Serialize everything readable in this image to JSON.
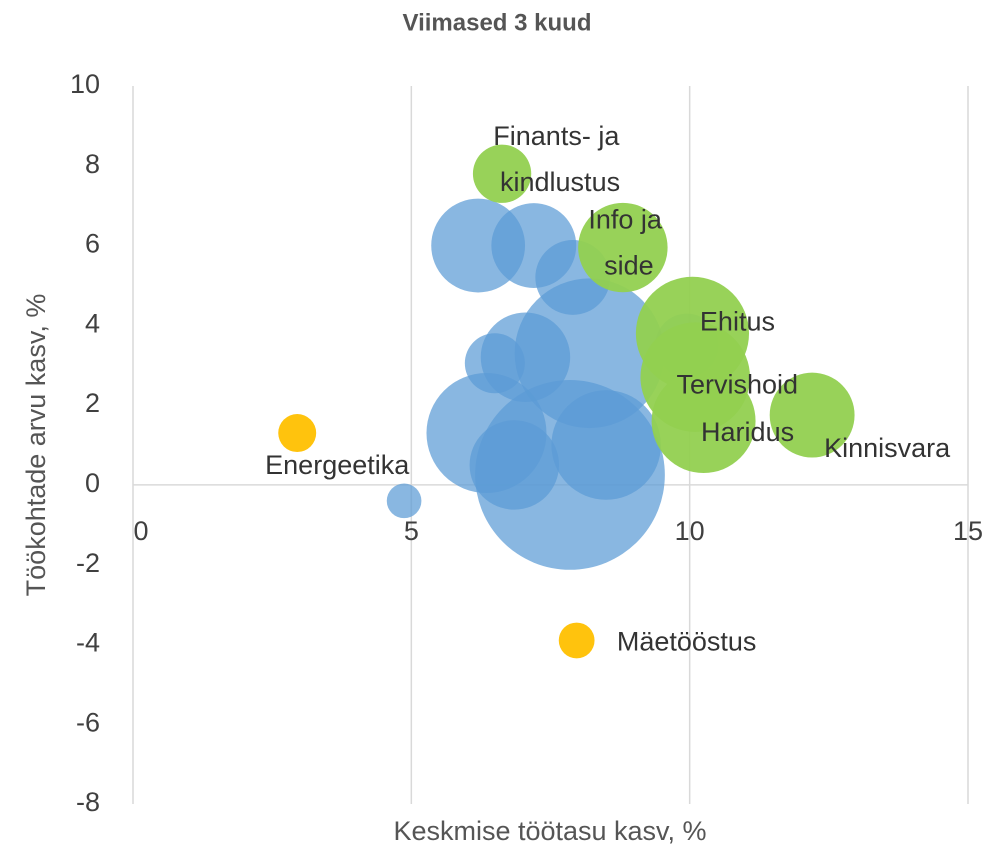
{
  "chart_data": {
    "type": "bubble",
    "title": "Viimased 3 kuud",
    "x_label": "Keskmise töötasu kasv, %",
    "y_label": "Töökohtade arvu kasv, %",
    "xlim": [
      0,
      15
    ],
    "xticks": [
      0,
      5,
      10,
      15
    ],
    "ylim": [
      -8,
      10
    ],
    "yticks": [
      -8,
      -6,
      -4,
      -2,
      0,
      2,
      4,
      6,
      8,
      10
    ],
    "grid": true,
    "series": [
      {
        "color": "#5b9bd5",
        "x": [
          7.85,
          8.2,
          6.35,
          6.2,
          7.2,
          8.5,
          7.05,
          6.85,
          7.9,
          6.5,
          4.87,
          9.95
        ],
        "y": [
          0.25,
          3.3,
          1.3,
          6.0,
          6.0,
          1.0,
          3.2,
          0.5,
          5.2,
          3.05,
          -0.4,
          3.5
        ],
        "size": [
          90,
          56,
          36,
          22,
          18,
          30,
          20,
          20,
          14,
          9,
          3,
          10
        ]
      },
      {
        "color": "#92d050",
        "x": [
          6.63,
          8.8,
          10.05,
          10.1,
          10.25,
          12.2
        ],
        "y": [
          7.8,
          5.95,
          3.8,
          2.7,
          1.6,
          1.75
        ],
        "size": [
          8.5,
          20,
          32,
          30,
          27,
          18
        ],
        "labels": [
          "Finants- ja kindlustus",
          "Info ja side",
          "Ehitus",
          "Tervishoid",
          "Haridus",
          "Kinnisvara"
        ]
      },
      {
        "color": "#ffc000",
        "x": [
          2.95,
          7.97
        ],
        "y": [
          1.3,
          -3.9
        ],
        "size": [
          3.6,
          3.2
        ],
        "labels": [
          "Energeetika",
          "Mäetööstus"
        ]
      }
    ]
  }
}
